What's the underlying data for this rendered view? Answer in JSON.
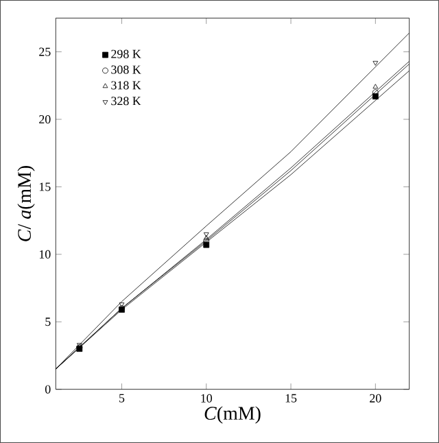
{
  "chart_data": {
    "type": "scatter",
    "xlabel": "*C*(mM)",
    "ylabel": "*C*/ *a*(mM)",
    "x": [
      2.5,
      5,
      10,
      20
    ],
    "xlim": [
      1.1,
      22
    ],
    "ylim": [
      0,
      27.5
    ],
    "xticks": [
      5,
      10,
      15,
      20
    ],
    "yticks": [
      0,
      5,
      10,
      15,
      20,
      25
    ],
    "legend": "top left",
    "grid": false,
    "series": [
      {
        "name": "298 K",
        "color": "#000000",
        "marker": "square*",
        "values": [
          3.0,
          5.9,
          10.7,
          21.7
        ]
      },
      {
        "name": "308 K",
        "color": "#000000",
        "marker": "circle",
        "values": [
          3.1,
          6.0,
          11.0,
          22.0
        ]
      },
      {
        "name": "318 K",
        "color": "#000000",
        "marker": "triangle",
        "values": [
          null,
          null,
          11.2,
          22.4
        ]
      },
      {
        "name": "328 K",
        "color": "#000000",
        "marker": "triangle down",
        "values": [
          3.3,
          6.3,
          11.5,
          24.2
        ]
      },
      {
        "type": "line",
        "color": "#000000",
        "x": [
          1.1,
          5,
          10,
          15,
          22
        ],
        "values": [
          1.5,
          5.9,
          10.9,
          15.9,
          23.6
        ]
      },
      {
        "type": "line",
        "color": "#000000",
        "x": [
          1.1,
          5,
          10,
          15,
          22
        ],
        "values": [
          1.5,
          6.0,
          11.0,
          16.2,
          24.1
        ]
      },
      {
        "type": "line",
        "color": "#000000",
        "x": [
          1.1,
          5,
          10,
          15,
          22
        ],
        "values": [
          1.5,
          6.0,
          11.1,
          16.4,
          24.3
        ]
      },
      {
        "type": "line",
        "color": "#000000",
        "x": [
          1.1,
          5,
          10,
          15,
          22
        ],
        "values": [
          1.5,
          6.5,
          12.1,
          17.6,
          26.4
        ]
      }
    ]
  }
}
